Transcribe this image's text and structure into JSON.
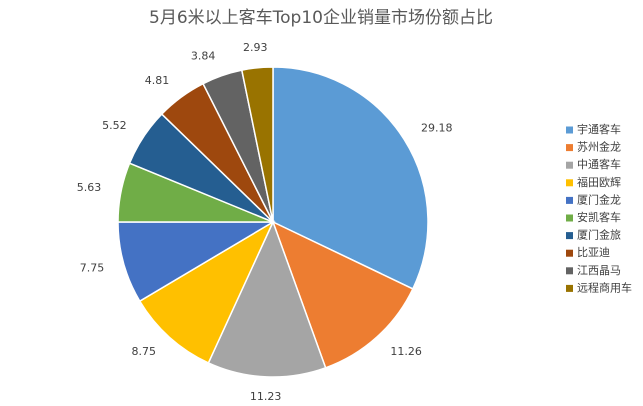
{
  "chart_data": {
    "type": "pie",
    "title": "5月6米以上客车Top10企业销量市场份额占比",
    "categories": [
      "宇通客车",
      "苏州金龙",
      "中通客车",
      "福田欧辉",
      "厦门金龙",
      "安凯客车",
      "厦门金旅",
      "比亚迪",
      "江西晶马",
      "远程商用车"
    ],
    "values": [
      29.18,
      11.26,
      11.23,
      8.75,
      7.75,
      5.63,
      5.52,
      4.81,
      3.84,
      2.93
    ],
    "colors": [
      "#5b9bd5",
      "#ed7d31",
      "#a5a5a5",
      "#ffc000",
      "#4472c4",
      "#70ad47",
      "#255e91",
      "#9e480e",
      "#636363",
      "#997300"
    ],
    "legend": "right"
  }
}
